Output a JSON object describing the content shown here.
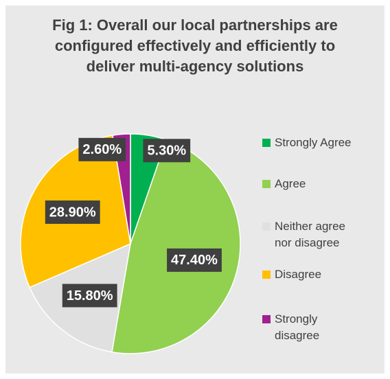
{
  "chart_data": {
    "type": "pie",
    "title": "Fig 1: Overall our local partnerships are configured effectively and efficiently to deliver multi-agency solutions",
    "categories": [
      "Strongly Agree",
      "Agree",
      "Neither agree nor disagree",
      "Disagree",
      "Strongly disagree"
    ],
    "values": [
      5.3,
      47.4,
      15.8,
      28.9,
      2.6
    ],
    "value_labels": [
      "5.30%",
      "47.40%",
      "15.80%",
      "28.90%",
      "2.60%"
    ],
    "colors": [
      "#00b050",
      "#92d050",
      "#e0e0e0",
      "#ffc000",
      "#a02090"
    ],
    "legend": "right"
  }
}
